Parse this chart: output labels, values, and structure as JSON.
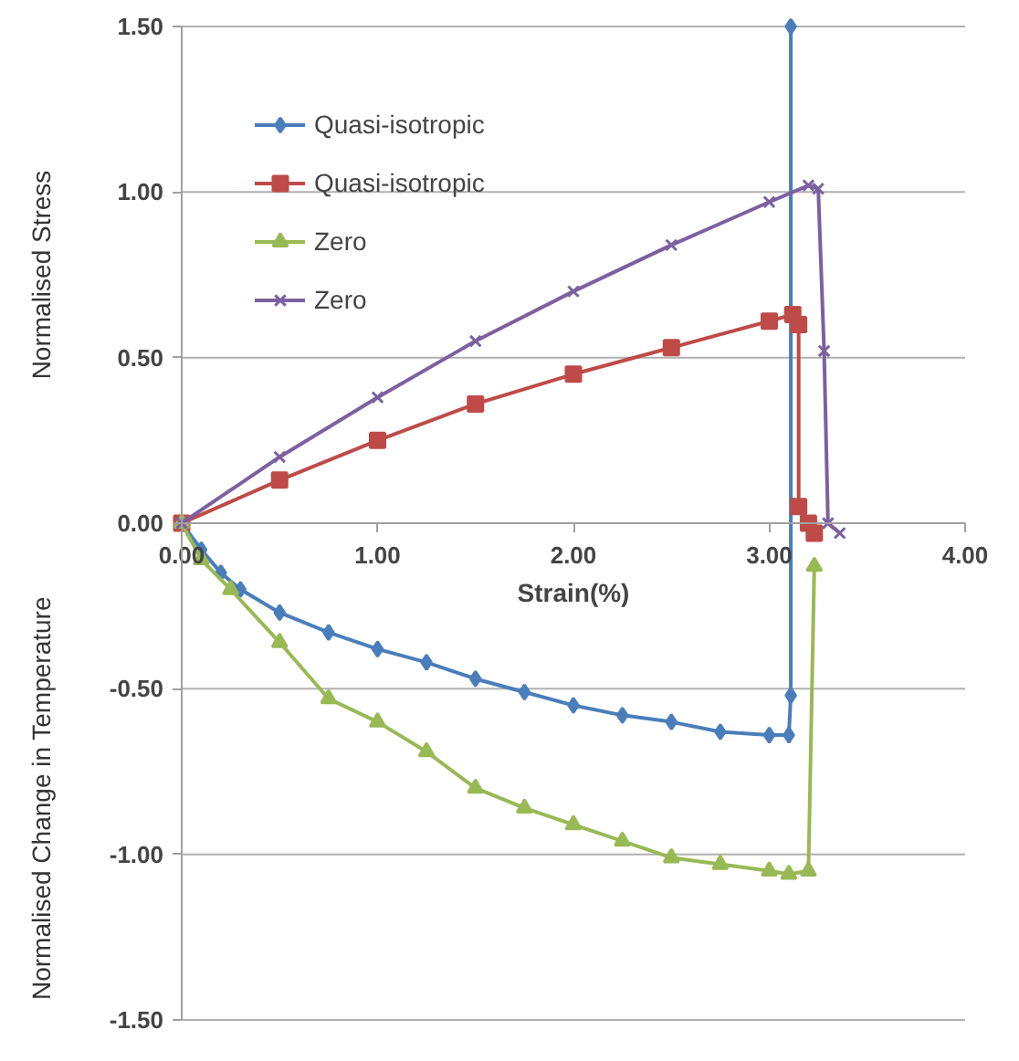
{
  "chart_data": {
    "type": "line",
    "xlabel": "Strain(%)",
    "ylabel": "Normalised Stress",
    "annotations": [
      "Normalised Change in Temperature"
    ],
    "xlim": [
      0,
      4
    ],
    "xticks": [
      {
        "value": 0,
        "label": "0.00"
      },
      {
        "value": 1,
        "label": "1.00"
      },
      {
        "value": 2,
        "label": "2.00"
      },
      {
        "value": 3,
        "label": "3.00"
      },
      {
        "value": 4,
        "label": "4.00"
      }
    ],
    "ylim": [
      -1.5,
      1.5
    ],
    "yticks": [
      {
        "value": -1.5,
        "label": "-1.50"
      },
      {
        "value": -1,
        "label": "-1.00"
      },
      {
        "value": -0.5,
        "label": "-0.50"
      },
      {
        "value": 0,
        "label": "0.00"
      },
      {
        "value": 0.5,
        "label": "0.50"
      },
      {
        "value": 1,
        "label": "1.00"
      },
      {
        "value": 1.5,
        "label": "1.50"
      }
    ],
    "grid": "y",
    "legend": "top left",
    "series": [
      {
        "name": "Quasi-isotropic",
        "color": "#4a7ebb",
        "marker": "diamond",
        "x": [
          0,
          0.1,
          0.2,
          0.3,
          0.5,
          0.75,
          1.0,
          1.25,
          1.5,
          1.75,
          2.0,
          2.25,
          2.5,
          2.75,
          3.0,
          3.1,
          3.11,
          3.11
        ],
        "values": [
          0,
          -0.08,
          -0.15,
          -0.2,
          -0.27,
          -0.33,
          -0.38,
          -0.42,
          -0.47,
          -0.51,
          -0.55,
          -0.58,
          -0.6,
          -0.63,
          -0.64,
          -0.64,
          -0.52,
          1.5
        ]
      },
      {
        "name": "Quasi-isotropic",
        "color": "#be4b48",
        "marker": "square",
        "x": [
          0,
          0.5,
          1.0,
          1.5,
          2.0,
          2.5,
          3.0,
          3.12,
          3.15,
          3.15,
          3.2,
          3.23
        ],
        "values": [
          0,
          0.13,
          0.25,
          0.36,
          0.45,
          0.53,
          0.61,
          0.63,
          0.6,
          0.05,
          0.0,
          -0.03
        ]
      },
      {
        "name": "Zero",
        "color": "#98b954",
        "marker": "triangle",
        "x": [
          0,
          0.1,
          0.25,
          0.5,
          0.75,
          1.0,
          1.25,
          1.5,
          1.75,
          2.0,
          2.25,
          2.5,
          2.75,
          3.0,
          3.1,
          3.2,
          3.23
        ],
        "values": [
          0,
          -0.11,
          -0.2,
          -0.36,
          -0.53,
          -0.6,
          -0.69,
          -0.8,
          -0.86,
          -0.91,
          -0.96,
          -1.01,
          -1.03,
          -1.05,
          -1.06,
          -1.05,
          -0.13
        ]
      },
      {
        "name": "Zero",
        "color": "#7d60a0",
        "marker": "cross",
        "x": [
          0,
          0.5,
          1.0,
          1.5,
          2.0,
          2.5,
          3.0,
          3.2,
          3.25,
          3.28,
          3.3,
          3.36
        ],
        "values": [
          0,
          0.2,
          0.38,
          0.55,
          0.7,
          0.84,
          0.97,
          1.02,
          1.01,
          0.52,
          0.0,
          -0.03
        ]
      }
    ]
  }
}
